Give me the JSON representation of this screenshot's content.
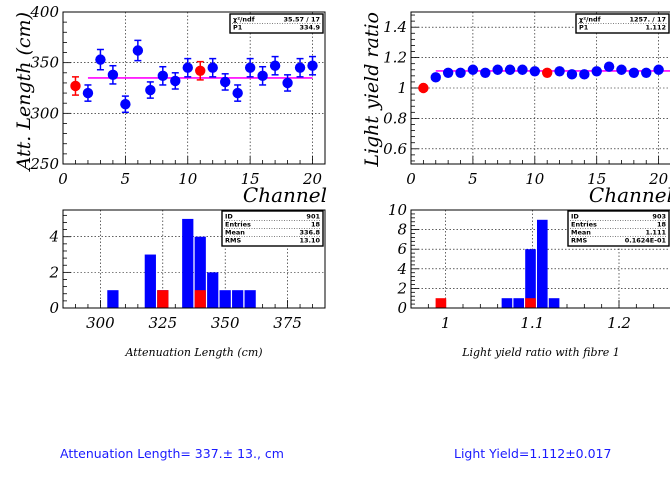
{
  "chart_data": [
    {
      "type": "scatter",
      "xlabel": "Channel",
      "ylabel": "Att. Length (cm)",
      "xlim": [
        0,
        21
      ],
      "ylim": [
        250,
        400
      ],
      "xticks": [
        0,
        5,
        10,
        15,
        20
      ],
      "yticks": [
        250,
        300,
        350,
        400
      ],
      "colors": {
        "normal": "#0000ff",
        "highlight": "#ff0000",
        "fit": "#ff00ff"
      },
      "points": [
        {
          "x": 1,
          "y": 327,
          "err": 9,
          "highlight": true
        },
        {
          "x": 2,
          "y": 320,
          "err": 8
        },
        {
          "x": 3,
          "y": 353,
          "err": 10
        },
        {
          "x": 4,
          "y": 338,
          "err": 9
        },
        {
          "x": 5,
          "y": 309,
          "err": 8
        },
        {
          "x": 6,
          "y": 362,
          "err": 10
        },
        {
          "x": 7,
          "y": 323,
          "err": 8
        },
        {
          "x": 8,
          "y": 337,
          "err": 9
        },
        {
          "x": 9,
          "y": 332,
          "err": 8
        },
        {
          "x": 10,
          "y": 345,
          "err": 9
        },
        {
          "x": 11,
          "y": 342,
          "err": 9,
          "highlight": true
        },
        {
          "x": 12,
          "y": 345,
          "err": 9
        },
        {
          "x": 13,
          "y": 331,
          "err": 8
        },
        {
          "x": 14,
          "y": 320,
          "err": 8
        },
        {
          "x": 15,
          "y": 345,
          "err": 9
        },
        {
          "x": 16,
          "y": 337,
          "err": 9
        },
        {
          "x": 17,
          "y": 347,
          "err": 9
        },
        {
          "x": 18,
          "y": 330,
          "err": 8
        },
        {
          "x": 19,
          "y": 345,
          "err": 9
        },
        {
          "x": 20,
          "y": 347,
          "err": 9
        }
      ],
      "fit": {
        "y": 334.9,
        "x_range": [
          2,
          20
        ]
      },
      "stats": [
        {
          "label": "χ²/ndf",
          "value": "35.57  /  17"
        },
        {
          "label": "P1",
          "value": "334.9"
        }
      ]
    },
    {
      "type": "scatter",
      "xlabel": "Channel",
      "ylabel": "Light yield ratio",
      "xlim": [
        0,
        21
      ],
      "ylim": [
        0.5,
        1.5
      ],
      "xticks": [
        0,
        5,
        10,
        15,
        20
      ],
      "yticks": [
        0.6,
        0.8,
        1,
        1.2,
        1.4
      ],
      "ytick_labels": [
        "0.6",
        "0.8",
        "1",
        "1.2",
        "1.4"
      ],
      "colors": {
        "normal": "#0000ff",
        "highlight": "#ff0000",
        "fit": "#ff00ff"
      },
      "points": [
        {
          "x": 1,
          "y": 1.0,
          "highlight": true
        },
        {
          "x": 2,
          "y": 1.07
        },
        {
          "x": 3,
          "y": 1.1
        },
        {
          "x": 4,
          "y": 1.1
        },
        {
          "x": 5,
          "y": 1.12
        },
        {
          "x": 6,
          "y": 1.1
        },
        {
          "x": 7,
          "y": 1.12
        },
        {
          "x": 8,
          "y": 1.12
        },
        {
          "x": 9,
          "y": 1.12
        },
        {
          "x": 10,
          "y": 1.11
        },
        {
          "x": 11,
          "y": 1.1,
          "highlight": true
        },
        {
          "x": 12,
          "y": 1.11
        },
        {
          "x": 13,
          "y": 1.09
        },
        {
          "x": 14,
          "y": 1.09
        },
        {
          "x": 15,
          "y": 1.11
        },
        {
          "x": 16,
          "y": 1.14
        },
        {
          "x": 17,
          "y": 1.12
        },
        {
          "x": 18,
          "y": 1.1
        },
        {
          "x": 19,
          "y": 1.1
        },
        {
          "x": 20,
          "y": 1.12
        }
      ],
      "fit": {
        "y": 1.112,
        "x_range": [
          2,
          21
        ]
      },
      "stats": [
        {
          "label": "χ²/ndf",
          "value": "1257.  /  17"
        },
        {
          "label": "P1",
          "value": "1.112"
        }
      ]
    },
    {
      "type": "bar",
      "title": "Attenuation Length (cm)",
      "xlim": [
        285,
        390
      ],
      "ylim": [
        0,
        5.5
      ],
      "xticks": [
        300,
        325,
        350,
        375
      ],
      "yticks": [
        0,
        2,
        4
      ],
      "bin_width": 5,
      "colors": {
        "blue": "#0000ff",
        "red": "#ff0000"
      },
      "series": [
        {
          "color": "blue",
          "bars": [
            {
              "x": 305,
              "value": 1
            },
            {
              "x": 320,
              "value": 3
            },
            {
              "x": 325,
              "value": 1
            },
            {
              "x": 335,
              "value": 5
            },
            {
              "x": 340,
              "value": 4
            },
            {
              "x": 345,
              "value": 2
            },
            {
              "x": 350,
              "value": 1
            },
            {
              "x": 355,
              "value": 1
            },
            {
              "x": 360,
              "value": 1
            }
          ]
        },
        {
          "color": "red",
          "bars": [
            {
              "x": 325,
              "value": 1
            },
            {
              "x": 340,
              "value": 1
            }
          ]
        }
      ],
      "stats": [
        {
          "label": "ID",
          "value": "901"
        },
        {
          "label": "Entries",
          "value": "18"
        },
        {
          "label": "Mean",
          "value": "336.8"
        },
        {
          "label": "RMS",
          "value": "13.10"
        }
      ]
    },
    {
      "type": "bar",
      "title": "Light yield ratio with fibre 1",
      "xlim": [
        0.96,
        1.26
      ],
      "ylim": [
        0,
        10
      ],
      "xticks": [
        1,
        1.1,
        1.2
      ],
      "xtick_labels": [
        "1",
        "1.1",
        "1.2"
      ],
      "yticks": [
        0,
        2,
        4,
        6,
        8,
        10
      ],
      "bin_width": 0.0136,
      "colors": {
        "blue": "#0000ff",
        "red": "#ff0000"
      },
      "series": [
        {
          "color": "blue",
          "bars": [
            {
              "x": 1.0707,
              "value": 1
            },
            {
              "x": 1.0843,
              "value": 1
            },
            {
              "x": 1.0979,
              "value": 6
            },
            {
              "x": 1.1115,
              "value": 9
            },
            {
              "x": 1.1251,
              "value": 1
            }
          ]
        },
        {
          "color": "red",
          "bars": [
            {
              "x": 0.9945,
              "value": 1
            },
            {
              "x": 1.0979,
              "value": 1
            }
          ]
        }
      ],
      "stats": [
        {
          "label": "ID",
          "value": "903"
        },
        {
          "label": "Entries",
          "value": "18"
        },
        {
          "label": "Mean",
          "value": "1.111"
        },
        {
          "label": "RMS",
          "value": "0.1624E-01"
        }
      ]
    }
  ],
  "footer": {
    "attenuation": "Attenuation Length=  337.± 13., cm",
    "light_yield": "Light Yield=1.112±0.017"
  }
}
